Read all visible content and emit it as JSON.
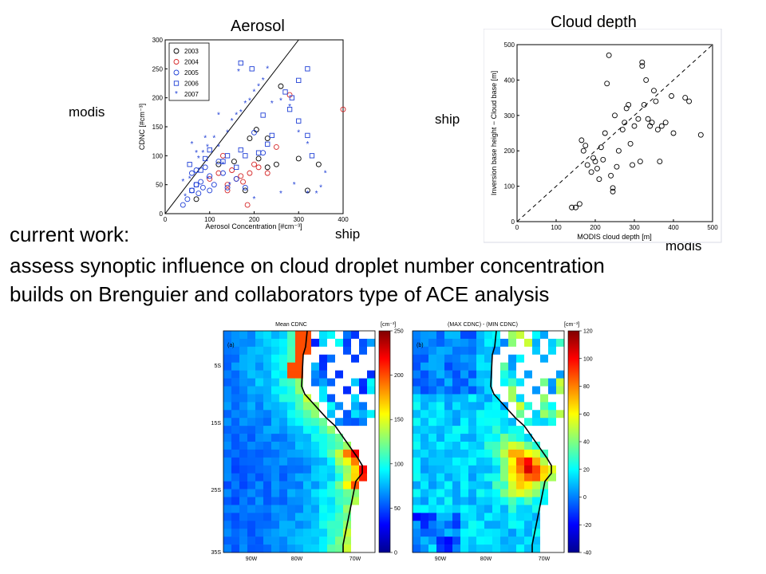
{
  "labels": {
    "aerosol_title": "Aerosol",
    "cloud_depth_title": "Cloud depth",
    "left_modis": "modis",
    "left_ship": "ship",
    "right_ship": "ship",
    "right_modis": "modis"
  },
  "text": {
    "current_work": "current work:",
    "line1": "assess synoptic influence on cloud droplet number concentration",
    "line2": "builds on Brenguier and collaborators type of ACE analysis"
  },
  "chart_data": [
    {
      "type": "scatter",
      "xlabel": "Aerosol Concentration [#cm⁻³]",
      "ylabel": "CDNC [#cm⁻³]",
      "xlim": [
        0,
        400
      ],
      "ylim": [
        0,
        300
      ],
      "xticks": [
        "0",
        "100",
        "200",
        "300",
        "400"
      ],
      "yticks": [
        "0",
        "50",
        "100",
        "150",
        "200",
        "250",
        "300"
      ],
      "legend_position": "top-left",
      "reference_line": "1:1",
      "series": [
        {
          "name": "2003",
          "marker": "circle",
          "color": "#000000",
          "points": [
            [
              70,
              25
            ],
            [
              120,
              85
            ],
            [
              155,
              90
            ],
            [
              190,
              130
            ],
            [
              205,
              145
            ],
            [
              210,
              95
            ],
            [
              230,
              80
            ],
            [
              250,
              85
            ],
            [
              260,
              220
            ],
            [
              300,
              95
            ],
            [
              345,
              85
            ],
            [
              320,
              40
            ],
            [
              180,
              40
            ],
            [
              230,
              130
            ]
          ]
        },
        {
          "name": "2004",
          "marker": "circle",
          "color": "#d62728",
          "points": [
            [
              100,
              60
            ],
            [
              120,
              70
            ],
            [
              140,
              50
            ],
            [
              150,
              75
            ],
            [
              160,
              60
            ],
            [
              170,
              65
            ],
            [
              175,
              55
            ],
            [
              190,
              70
            ],
            [
              200,
              85
            ],
            [
              210,
              80
            ],
            [
              230,
              70
            ],
            [
              250,
              115
            ],
            [
              280,
              205
            ],
            [
              400,
              180
            ],
            [
              140,
              40
            ],
            [
              185,
              15
            ],
            [
              130,
              100
            ]
          ]
        },
        {
          "name": "2005",
          "marker": "circle",
          "color": "#1f3fd6",
          "points": [
            [
              40,
              15
            ],
            [
              50,
              25
            ],
            [
              60,
              40
            ],
            [
              70,
              50
            ],
            [
              75,
              35
            ],
            [
              80,
              55
            ],
            [
              90,
              80
            ],
            [
              100,
              65
            ],
            [
              110,
              50
            ],
            [
              120,
              90
            ],
            [
              130,
              70
            ],
            [
              140,
              45
            ],
            [
              160,
              60
            ],
            [
              180,
              45
            ],
            [
              200,
              140
            ],
            [
              220,
              105
            ],
            [
              60,
              70
            ],
            [
              70,
              75
            ],
            [
              85,
              45
            ],
            [
              100,
              40
            ]
          ]
        },
        {
          "name": "2006",
          "marker": "square",
          "color": "#1f3fd6",
          "points": [
            [
              55,
              85
            ],
            [
              60,
              40
            ],
            [
              70,
              50
            ],
            [
              80,
              75
            ],
            [
              90,
              95
            ],
            [
              100,
              110
            ],
            [
              130,
              90
            ],
            [
              140,
              100
            ],
            [
              160,
              80
            ],
            [
              170,
              110
            ],
            [
              180,
              100
            ],
            [
              210,
              105
            ],
            [
              220,
              170
            ],
            [
              240,
              135
            ],
            [
              270,
              210
            ],
            [
              280,
              180
            ],
            [
              285,
              200
            ],
            [
              300,
              160
            ],
            [
              320,
              135
            ],
            [
              330,
              100
            ],
            [
              170,
              260
            ],
            [
              320,
              250
            ],
            [
              300,
              230
            ],
            [
              195,
              250
            ],
            [
              230,
              120
            ]
          ]
        },
        {
          "name": "2007",
          "marker": "star",
          "color": "#1f3fd6",
          "points": [
            [
              40,
              55
            ],
            [
              45,
              30
            ],
            [
              55,
              60
            ],
            [
              60,
              120
            ],
            [
              70,
              105
            ],
            [
              75,
              95
            ],
            [
              85,
              105
            ],
            [
              90,
              130
            ],
            [
              95,
              115
            ],
            [
              110,
              130
            ],
            [
              120,
              115
            ],
            [
              130,
              85
            ],
            [
              140,
              140
            ],
            [
              150,
              160
            ],
            [
              160,
              170
            ],
            [
              170,
              175
            ],
            [
              180,
              190
            ],
            [
              190,
              195
            ],
            [
              200,
              210
            ],
            [
              210,
              220
            ],
            [
              220,
              230
            ],
            [
              240,
              190
            ],
            [
              260,
              195
            ],
            [
              280,
              185
            ],
            [
              300,
              140
            ],
            [
              320,
              120
            ],
            [
              340,
              35
            ],
            [
              350,
              45
            ],
            [
              360,
              70
            ],
            [
              230,
              250
            ],
            [
              165,
              245
            ],
            [
              120,
              170
            ],
            [
              95,
              60
            ],
            [
              145,
              50
            ],
            [
              200,
              25
            ],
            [
              260,
              35
            ],
            [
              290,
              50
            ],
            [
              320,
              35
            ]
          ]
        }
      ]
    },
    {
      "type": "scatter",
      "xlabel": "MODIS cloud depth [m]",
      "ylabel": "Inversion base height − Cloud base [m]",
      "xlim": [
        0,
        500
      ],
      "ylim": [
        0,
        500
      ],
      "xticks": [
        "0",
        "100",
        "200",
        "300",
        "400",
        "500"
      ],
      "yticks": [
        "0",
        "100",
        "200",
        "300",
        "400",
        "500"
      ],
      "reference_line": "1:1 dashed",
      "series": [
        {
          "marker": "circle",
          "color": "#000000",
          "points": [
            [
              140,
              40
            ],
            [
              150,
              40
            ],
            [
              160,
              50
            ],
            [
              165,
              230
            ],
            [
              170,
              200
            ],
            [
              175,
              215
            ],
            [
              180,
              160
            ],
            [
              190,
              140
            ],
            [
              195,
              180
            ],
            [
              200,
              170
            ],
            [
              205,
              150
            ],
            [
              210,
              120
            ],
            [
              215,
              210
            ],
            [
              220,
              175
            ],
            [
              225,
              250
            ],
            [
              230,
              390
            ],
            [
              235,
              470
            ],
            [
              240,
              130
            ],
            [
              245,
              85
            ],
            [
              245,
              95
            ],
            [
              250,
              300
            ],
            [
              255,
              155
            ],
            [
              260,
              200
            ],
            [
              270,
              260
            ],
            [
              275,
              280
            ],
            [
              280,
              320
            ],
            [
              285,
              330
            ],
            [
              290,
              220
            ],
            [
              295,
              160
            ],
            [
              300,
              270
            ],
            [
              310,
              290
            ],
            [
              315,
              170
            ],
            [
              320,
              440
            ],
            [
              320,
              450
            ],
            [
              325,
              330
            ],
            [
              330,
              400
            ],
            [
              335,
              290
            ],
            [
              340,
              270
            ],
            [
              345,
              280
            ],
            [
              350,
              370
            ],
            [
              355,
              340
            ],
            [
              360,
              260
            ],
            [
              365,
              170
            ],
            [
              370,
              270
            ],
            [
              380,
              280
            ],
            [
              395,
              355
            ],
            [
              400,
              250
            ],
            [
              430,
              350
            ],
            [
              440,
              340
            ],
            [
              470,
              245
            ]
          ]
        }
      ]
    },
    {
      "type": "heatmap",
      "title": "Mean CDNC",
      "panel_label": "(a)",
      "colorbar_unit": "[cm⁻³]",
      "colorbar_ticks": [
        "250",
        "200",
        "150",
        "100",
        "50",
        "0"
      ],
      "y_ticks": [
        "5S",
        "15S",
        "25S",
        "35S"
      ],
      "x_ticks": [
        "90W",
        "80W",
        "70W"
      ]
    },
    {
      "type": "heatmap",
      "title": "(MAX CDNC) - (MIN CDNC)",
      "panel_label": "(b)",
      "colorbar_unit": "[cm⁻³]",
      "colorbar_ticks": [
        "120",
        "100",
        "80",
        "60",
        "40",
        "20",
        "0",
        "-20",
        "-40"
      ],
      "x_ticks": [
        "90W",
        "80W",
        "70W"
      ]
    }
  ]
}
